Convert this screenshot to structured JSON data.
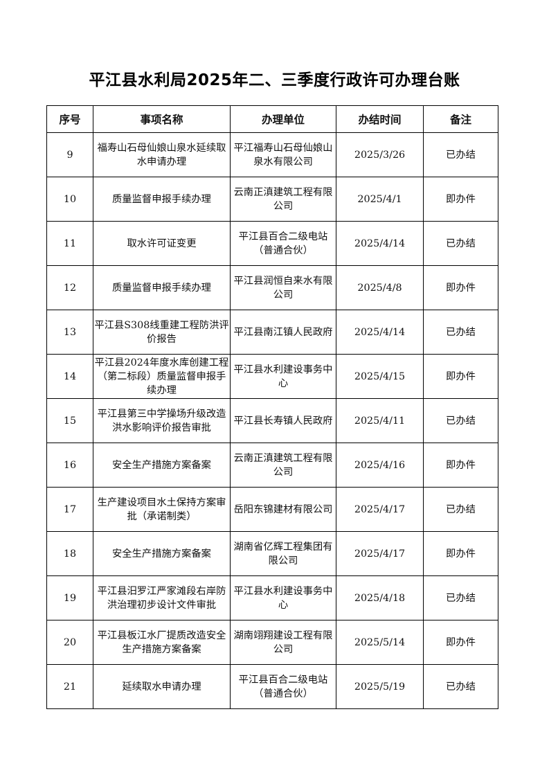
{
  "title": "平江县水利局2025年二、三季度行政许可办理台账",
  "table": {
    "headers": [
      "序号",
      "事项名称",
      "办理单位",
      "办结时间",
      "备注"
    ],
    "rows": [
      {
        "no": "9",
        "item": "福寿山石母仙娘山泉水延续取水申请办理",
        "unit": "平江福寿山石母仙娘山泉水有限公司",
        "date": "2025/3/26",
        "note": "已办结"
      },
      {
        "no": "10",
        "item": "质量监督申报手续办理",
        "unit": "云南正滇建筑工程有限公司",
        "date": "2025/4/1",
        "note": "即办件"
      },
      {
        "no": "11",
        "item": "取水许可证变更",
        "unit": "平江县百合二级电站（普通合伙）",
        "date": "2025/4/14",
        "note": "已办结"
      },
      {
        "no": "12",
        "item": "质量监督申报手续办理",
        "unit": "平江县润恒自来水有限公司",
        "date": "2025/4/8",
        "note": "即办件"
      },
      {
        "no": "13",
        "item": "平江县S308线重建工程防洪评价报告",
        "unit": "平江县南江镇人民政府",
        "date": "2025/4/14",
        "note": "已办结"
      },
      {
        "no": "14",
        "item": "平江县2024年度水库创建工程（第二标段）质量监督申报手续办理",
        "unit": "平江县水利建设事务中心",
        "date": "2025/4/15",
        "note": "即办件"
      },
      {
        "no": "15",
        "item": "平江县第三中学操场升级改造洪水影响评价报告审批",
        "unit": "平江县长寿镇人民政府",
        "date": "2025/4/11",
        "note": "已办结"
      },
      {
        "no": "16",
        "item": "安全生产措施方案备案",
        "unit": "云南正滇建筑工程有限公司",
        "date": "2025/4/16",
        "note": "即办件"
      },
      {
        "no": "17",
        "item": "生产建设项目水土保持方案审批（承诺制类）",
        "unit": "岳阳东锦建材有限公司",
        "date": "2025/4/17",
        "note": "已办结"
      },
      {
        "no": "18",
        "item": "安全生产措施方案备案",
        "unit": "湖南省亿辉工程集团有限公司",
        "date": "2025/4/17",
        "note": "即办件"
      },
      {
        "no": "19",
        "item": "平江县汨罗江严家滩段右岸防洪治理初步设计文件审批",
        "unit": "平江县水利建设事务中心",
        "date": "2025/4/18",
        "note": "已办结"
      },
      {
        "no": "20",
        "item": "平江县板江水厂提质改造安全生产措施方案备案",
        "unit": "湖南翊翔建设工程有限公司",
        "date": "2025/5/14",
        "note": "即办件"
      },
      {
        "no": "21",
        "item": "延续取水申请办理",
        "unit": "平江县百合二级电站（普通合伙）",
        "date": "2025/5/19",
        "note": "已办结"
      }
    ]
  }
}
